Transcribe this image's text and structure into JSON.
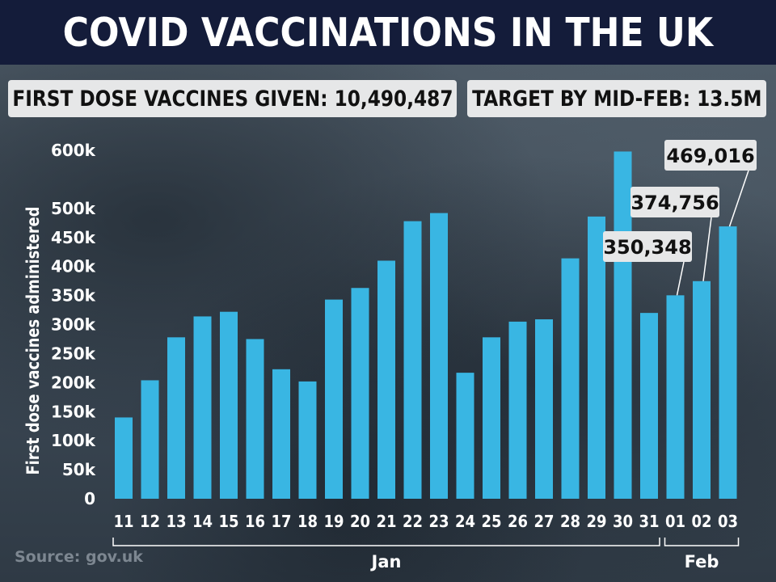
{
  "header": {
    "title": "COVID VACCINATIONS IN THE UK",
    "first_dose_label": "FIRST DOSE VACCINES GIVEN: 10,490,487",
    "target_label": "TARGET BY MID-FEB: 13.5M"
  },
  "source": "Source: gov.uk",
  "colors": {
    "bar": "#39b6e3",
    "title_bar": "#141c3a",
    "box_bg": "#e6e7e8",
    "axis_text": "#ffffff"
  },
  "chart_data": {
    "type": "bar",
    "ylabel": "First dose vaccines administered",
    "xlabel": "",
    "ylim": [
      0,
      600000
    ],
    "yticks": [
      {
        "value": 0,
        "label": "0"
      },
      {
        "value": 50000,
        "label": "50k"
      },
      {
        "value": 100000,
        "label": "100k"
      },
      {
        "value": 150000,
        "label": "150k"
      },
      {
        "value": 200000,
        "label": "200k"
      },
      {
        "value": 250000,
        "label": "250k"
      },
      {
        "value": 300000,
        "label": "300k"
      },
      {
        "value": 350000,
        "label": "350k"
      },
      {
        "value": 400000,
        "label": "400k"
      },
      {
        "value": 450000,
        "label": "450k"
      },
      {
        "value": 500000,
        "label": "500k"
      },
      {
        "value": 600000,
        "label": "600k"
      }
    ],
    "categories": [
      "11",
      "12",
      "13",
      "14",
      "15",
      "16",
      "17",
      "18",
      "19",
      "20",
      "21",
      "22",
      "23",
      "24",
      "25",
      "26",
      "27",
      "28",
      "29",
      "30",
      "31",
      "01",
      "02",
      "03"
    ],
    "values": [
      140000,
      204000,
      278000,
      314000,
      322000,
      275000,
      223000,
      202000,
      343000,
      363000,
      410000,
      478000,
      492000,
      217000,
      278000,
      305000,
      309000,
      414000,
      486000,
      598000,
      320000,
      350348,
      374756,
      469016
    ],
    "month_groups": [
      {
        "label": "Jan",
        "start": 0,
        "end": 20
      },
      {
        "label": "Feb",
        "start": 21,
        "end": 23
      }
    ],
    "annotations": [
      {
        "index": 21,
        "label": "350,348"
      },
      {
        "index": 22,
        "label": "374,756"
      },
      {
        "index": 23,
        "label": "469,016"
      }
    ]
  }
}
